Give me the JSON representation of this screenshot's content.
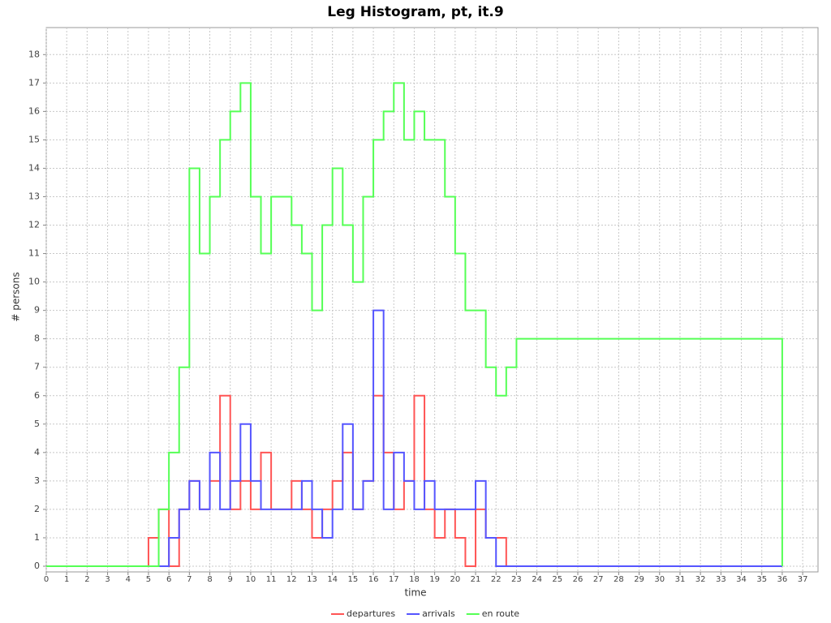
{
  "chart_data": {
    "type": "line",
    "step": true,
    "title": "Leg Histogram, pt, it.9",
    "x_label": "time",
    "y_label": "# persons",
    "x": [
      0,
      5,
      5.5,
      6,
      6.5,
      7,
      7.5,
      8,
      8.5,
      9,
      9.5,
      10,
      10.5,
      11,
      11.5,
      12,
      12.5,
      13,
      13.5,
      14,
      14.5,
      15,
      15.5,
      16,
      16.5,
      17,
      17.5,
      18,
      18.5,
      19,
      19.5,
      20,
      20.5,
      21,
      21.5,
      22,
      22.5,
      23,
      36
    ],
    "series": [
      {
        "name": "departures",
        "color": "#ff5555",
        "values": [
          0,
          1,
          2,
          0,
          2,
          3,
          2,
          3,
          6,
          2,
          3,
          2,
          4,
          2,
          2,
          3,
          2,
          1,
          2,
          3,
          4,
          2,
          3,
          6,
          4,
          2,
          3,
          6,
          2,
          1,
          2,
          1,
          0,
          2,
          1,
          1,
          0,
          0,
          0
        ]
      },
      {
        "name": "arrivals",
        "color": "#5555ff",
        "values": [
          0,
          0,
          0,
          1,
          2,
          3,
          2,
          4,
          2,
          3,
          5,
          3,
          2,
          2,
          2,
          2,
          3,
          2,
          1,
          2,
          5,
          2,
          3,
          9,
          2,
          4,
          3,
          2,
          3,
          2,
          2,
          2,
          2,
          3,
          1,
          0,
          0,
          0,
          0
        ]
      },
      {
        "name": "en route",
        "color": "#55ff55",
        "values": [
          0,
          0,
          2,
          4,
          7,
          14,
          11,
          13,
          15,
          16,
          17,
          13,
          11,
          13,
          13,
          12,
          11,
          9,
          12,
          14,
          12,
          10,
          13,
          15,
          16,
          17,
          15,
          16,
          15,
          15,
          13,
          11,
          9,
          9,
          7,
          6,
          7,
          8,
          0
        ]
      }
    ],
    "xlim": [
      0,
      37.75
    ],
    "ylim": [
      -0.2,
      18.95
    ],
    "xticks": [
      0,
      1,
      2,
      3,
      4,
      5,
      6,
      7,
      8,
      9,
      10,
      11,
      12,
      13,
      14,
      15,
      16,
      17,
      18,
      19,
      20,
      21,
      22,
      23,
      24,
      25,
      26,
      27,
      28,
      29,
      30,
      31,
      32,
      33,
      34,
      35,
      36,
      37
    ],
    "yticks": [
      0,
      1,
      2,
      3,
      4,
      5,
      6,
      7,
      8,
      9,
      10,
      11,
      12,
      13,
      14,
      15,
      16,
      17,
      18
    ],
    "grid": true,
    "legend": "bottom"
  }
}
